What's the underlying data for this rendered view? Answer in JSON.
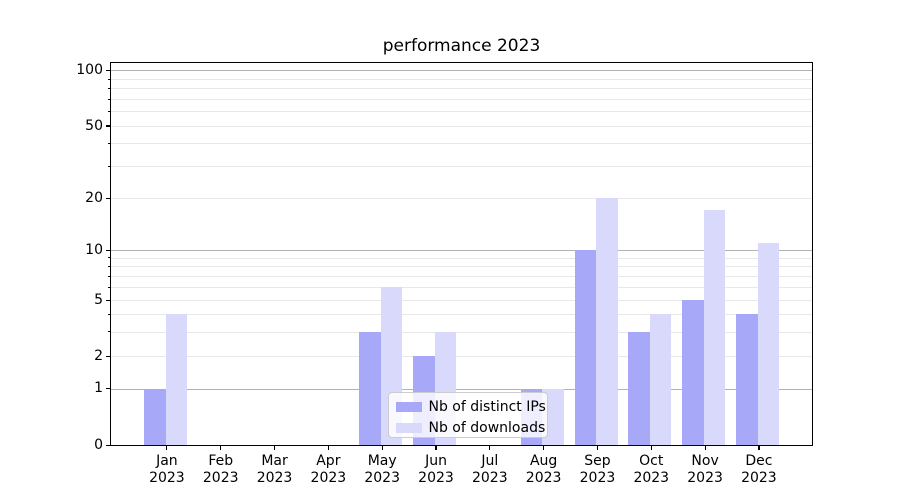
{
  "title": "performance 2023",
  "colors": {
    "bar_distinct_ips": "#a8a8f8",
    "bar_downloads": "#d9d9fb",
    "grid_major": "#b2b2b2",
    "grid_minor": "#e8e8e8",
    "spine": "#000000",
    "legend_border": "#cccccc"
  },
  "y_axis": {
    "tick_labels": [
      "0",
      "1",
      "2",
      "5",
      "10",
      "20",
      "50",
      "100"
    ],
    "tick_values": [
      0,
      1,
      2,
      5,
      10,
      20,
      50,
      100
    ],
    "minor_tick_values": [
      3,
      4,
      6,
      7,
      8,
      9,
      30,
      40,
      60,
      70,
      80,
      90
    ],
    "major_gridline_values": [
      1,
      10,
      100
    ],
    "minor_gridline_values": [
      2,
      3,
      4,
      5,
      6,
      7,
      8,
      9,
      20,
      30,
      40,
      50,
      60,
      70,
      80,
      90
    ]
  },
  "x_axis": {
    "year": "2023",
    "months": [
      "Jan",
      "Feb",
      "Mar",
      "Apr",
      "May",
      "Jun",
      "Jul",
      "Aug",
      "Sep",
      "Oct",
      "Nov",
      "Dec"
    ]
  },
  "legend": {
    "items": [
      {
        "label": "Nb of distinct IPs",
        "color": "#a8a8f8"
      },
      {
        "label": "Nb of downloads",
        "color": "#d9d9fb"
      }
    ]
  },
  "chart_data": {
    "type": "bar",
    "title": "performance 2023",
    "categories": [
      "Jan 2023",
      "Feb 2023",
      "Mar 2023",
      "Apr 2023",
      "May 2023",
      "Jun 2023",
      "Jul 2023",
      "Aug 2023",
      "Sep 2023",
      "Oct 2023",
      "Nov 2023",
      "Dec 2023"
    ],
    "series": [
      {
        "name": "Nb of distinct IPs",
        "color": "#a8a8f8",
        "values": [
          1,
          0,
          0,
          0,
          3,
          2,
          0,
          1,
          10,
          3,
          5,
          4
        ]
      },
      {
        "name": "Nb of downloads",
        "color": "#d9d9fb",
        "values": [
          4,
          0,
          0,
          0,
          6,
          3,
          0,
          1,
          20,
          4,
          17,
          11
        ]
      }
    ],
    "xlabel": "",
    "ylabel": "",
    "yscale": "symlog",
    "y_ticks": [
      0,
      1,
      2,
      5,
      10,
      20,
      50,
      100
    ],
    "ylim": [
      0,
      110
    ],
    "grid": true,
    "legend_position": "lower center"
  }
}
